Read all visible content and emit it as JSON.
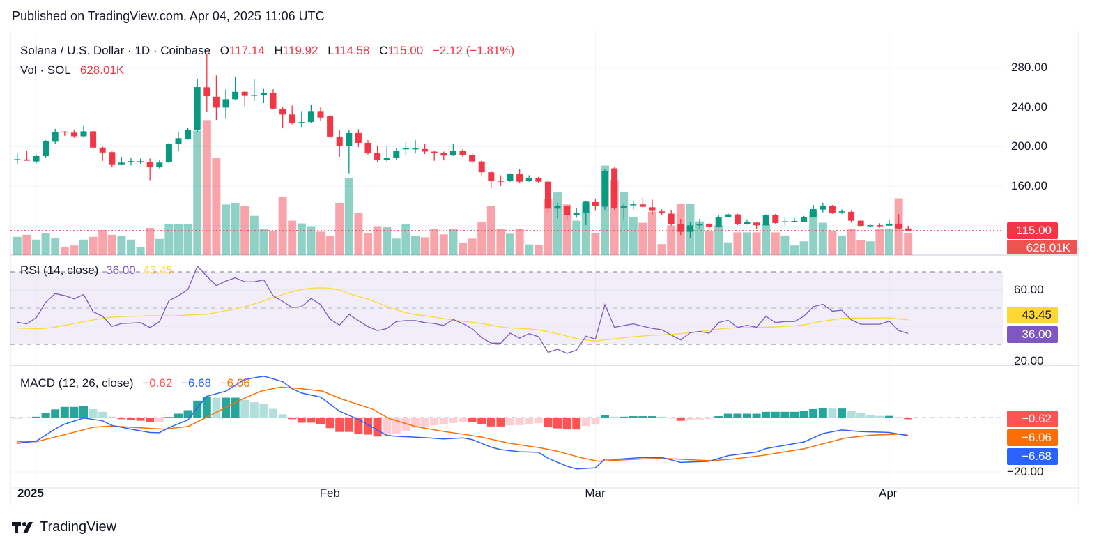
{
  "published": "Published on TradingView.com, Apr 04, 2025 11:06 UTC",
  "legend": {
    "symbol": "Solana / U.S. Dollar · 1D · Coinbase",
    "o_label": "O",
    "o": "117.14",
    "h_label": "H",
    "h": "119.92",
    "l_label": "L",
    "l": "114.58",
    "c_label": "C",
    "c": "115.00",
    "change": "−2.12 (−1.81%)",
    "vol_label": "Vol · SOL",
    "vol": "628.01K"
  },
  "rsi_legend": {
    "label": "RSI (14, close)",
    "rsi": "36.00",
    "ma": "43.45"
  },
  "macd_legend": {
    "label": "MACD (12, 26, close)",
    "hist": "−0.62",
    "macd": "−6.68",
    "signal": "−6.06"
  },
  "price_axis": [
    "280.00",
    "240.00",
    "200.00",
    "160.00"
  ],
  "rsi_axis": [
    "60.00",
    "20.00"
  ],
  "macd_axis": [
    "−20.00"
  ],
  "badges": {
    "price": "115.00",
    "volume": "628.01K",
    "rsi_ma": "43.45",
    "rsi": "36.00",
    "hist": "−0.62",
    "signal": "−6.06",
    "macd": "−6.68"
  },
  "time_axis": [
    {
      "label": "2025",
      "index": 2,
      "bold": true
    },
    {
      "label": "Feb",
      "index": 33
    },
    {
      "label": "Mar",
      "index": 61
    },
    {
      "label": "Apr",
      "index": 92
    }
  ],
  "footer": {
    "brand": "TradingView"
  },
  "colors": {
    "up": "#089981",
    "down": "#f23645",
    "rsi": "#7e57c2",
    "rsi_ma": "#fdd835",
    "macd": "#2962ff",
    "signal": "#ff6d00",
    "hist_up_strong": "#26a69a",
    "hist_up_weak": "#b2dfdb",
    "hist_down_strong": "#ff5252",
    "hist_down_weak": "#ffcdd2"
  },
  "chart_data": {
    "type": "candlestick",
    "title": "Solana / U.S. Dollar · 1D · Coinbase",
    "ylim": [
      105,
      295
    ],
    "ohlc": [
      [
        187.3,
        193,
        182.6,
        187.3
      ],
      [
        187,
        195.5,
        186,
        185.7
      ],
      [
        185,
        192,
        183,
        190.4
      ],
      [
        190.4,
        206.5,
        189,
        205.4
      ],
      [
        205,
        218,
        203,
        215
      ],
      [
        215.3,
        215.5,
        211,
        214.5
      ],
      [
        214.1,
        217,
        209,
        210.5
      ],
      [
        210.5,
        221,
        209,
        215.5
      ],
      [
        215.5,
        216,
        199,
        199
      ],
      [
        199,
        200,
        185.5,
        194
      ],
      [
        194.4,
        195,
        179,
        181.4
      ],
      [
        181.4,
        189.6,
        181,
        183.8
      ],
      [
        185,
        189,
        181,
        185.3
      ],
      [
        185,
        188,
        182,
        185.2
      ],
      [
        184.5,
        188,
        166,
        179
      ],
      [
        179,
        186,
        178,
        183.8
      ],
      [
        184,
        204,
        183,
        203
      ],
      [
        203,
        215,
        196,
        208.5
      ],
      [
        208,
        219,
        207,
        217
      ],
      [
        217,
        268.7,
        215,
        260.2
      ],
      [
        260,
        294,
        235,
        251
      ],
      [
        250.5,
        272,
        227,
        239.5
      ],
      [
        239.5,
        258,
        228,
        248
      ],
      [
        248,
        271,
        247,
        255.5
      ],
      [
        255.5,
        256,
        241,
        251.3
      ],
      [
        252,
        268,
        246,
        252.4
      ],
      [
        252,
        259,
        244,
        254.5
      ],
      [
        254.5,
        258,
        238,
        238.5
      ],
      [
        238,
        240,
        218.5,
        232.5
      ],
      [
        232.5,
        241.5,
        222.5,
        224
      ],
      [
        224,
        236,
        220,
        224.8
      ],
      [
        225,
        242,
        224,
        236
      ],
      [
        236,
        240,
        226,
        229.4
      ],
      [
        231,
        232,
        209,
        210.2
      ],
      [
        210.2,
        216.5,
        189.7,
        200.3
      ],
      [
        200.3,
        216.5,
        173,
        213.7
      ],
      [
        213.7,
        217.7,
        199.5,
        203.8
      ],
      [
        203.8,
        206.5,
        192,
        193.2
      ],
      [
        193.2,
        201,
        184,
        186.2
      ],
      [
        186.2,
        201,
        185,
        188.5
      ],
      [
        188.5,
        198,
        186.5,
        196
      ],
      [
        198,
        204.5,
        191,
        198.3
      ],
      [
        198,
        206.5,
        193,
        198.2
      ],
      [
        197.5,
        203,
        192.5,
        195
      ],
      [
        194.9,
        195.5,
        185.6,
        194
      ],
      [
        193.7,
        195,
        186,
        190.9
      ],
      [
        191,
        202.5,
        190.5,
        196
      ],
      [
        196,
        197.5,
        189.5,
        191.6
      ],
      [
        191.6,
        193.5,
        183.5,
        185
      ],
      [
        185,
        186.5,
        171,
        174
      ],
      [
        174,
        175.5,
        158,
        165.5
      ],
      [
        165.5,
        171,
        160,
        165.3
      ],
      [
        165,
        173,
        164.5,
        172.5
      ],
      [
        172,
        177,
        163.5,
        164.5
      ],
      [
        165,
        171,
        164.5,
        168.5
      ],
      [
        168.3,
        169.5,
        163,
        164.5
      ],
      [
        164.5,
        166.5,
        133.3,
        137.2
      ],
      [
        137.2,
        143,
        127.5,
        140.3
      ],
      [
        139.8,
        141,
        126,
        131.1
      ],
      [
        131,
        138,
        128,
        133.2
      ],
      [
        133,
        144.5,
        120.5,
        144.3
      ],
      [
        143.8,
        147,
        135,
        139.6
      ],
      [
        139.2,
        177,
        136,
        175.6
      ],
      [
        178,
        179,
        136,
        137.5
      ],
      [
        137.5,
        142.5,
        126.4,
        140.3
      ],
      [
        141.3,
        145.2,
        136.4,
        141.6
      ],
      [
        141.5,
        148.5,
        138,
        139.1
      ],
      [
        138.6,
        146.4,
        130.6,
        134.9
      ],
      [
        134.4,
        136.5,
        131,
        132.5
      ],
      [
        132.1,
        135.3,
        120,
        121.2
      ],
      [
        121.2,
        126.9,
        110.5,
        113.7
      ],
      [
        113.7,
        124,
        107.4,
        120.3
      ],
      [
        120.3,
        126.9,
        116.8,
        121.9
      ],
      [
        122,
        122.8,
        116,
        118.9
      ],
      [
        118.9,
        131,
        118,
        129
      ],
      [
        129,
        132.5,
        128.4,
        131.4
      ],
      [
        131.4,
        132,
        120.5,
        121.2
      ],
      [
        121.4,
        126.4,
        121,
        123.4
      ],
      [
        123.1,
        123.5,
        117,
        120.3
      ],
      [
        120.3,
        131.4,
        120,
        130.7
      ],
      [
        130.7,
        131.9,
        122,
        122.7
      ],
      [
        124.2,
        128,
        120.3,
        124.4
      ],
      [
        124.3,
        127.5,
        124,
        124.8
      ],
      [
        123.8,
        129.8,
        123.6,
        128.5
      ],
      [
        128.5,
        141,
        128,
        136.8
      ],
      [
        136.3,
        143.3,
        133.5,
        139.6
      ],
      [
        139.6,
        141,
        132,
        133
      ],
      [
        134.2,
        136.5,
        132,
        134.5
      ],
      [
        134,
        135,
        123,
        125
      ],
      [
        125,
        125.5,
        119,
        119.8
      ],
      [
        120.2,
        122,
        118,
        120.4
      ],
      [
        120.4,
        122.4,
        118,
        120.2
      ],
      [
        120,
        125.6,
        120,
        122
      ],
      [
        122,
        131.7,
        116.5,
        117.2
      ],
      [
        117.14,
        119.92,
        114.58,
        115.0
      ]
    ],
    "volume_millions": [
      0.53,
      0.59,
      0.45,
      0.64,
      0.49,
      0.23,
      0.28,
      0.45,
      0.53,
      0.73,
      0.59,
      0.56,
      0.45,
      0.23,
      0.79,
      0.47,
      0.89,
      0.89,
      0.89,
      3.61,
      3.92,
      2.83,
      1.47,
      1.52,
      1.42,
      1.14,
      0.76,
      0.69,
      1.68,
      1.0,
      0.92,
      0.84,
      0.68,
      0.56,
      1.52,
      2.24,
      1.22,
      0.64,
      0.84,
      0.82,
      0.48,
      0.89,
      0.56,
      0.52,
      0.76,
      0.6,
      0.76,
      0.36,
      0.48,
      0.96,
      1.42,
      0.76,
      0.62,
      0.76,
      0.31,
      0.29,
      1.62,
      1.82,
      1.47,
      1.0,
      1.52,
      0.64,
      2.6,
      2.18,
      1.82,
      1.11,
      0.94,
      1.26,
      0.32,
      0.86,
      1.48,
      1.48,
      0.98,
      0.69,
      0.86,
      0.37,
      0.66,
      0.66,
      0.66,
      0.91,
      0.66,
      0.57,
      0.28,
      0.4,
      1.28,
      0.94,
      0.69,
      0.57,
      0.77,
      0.43,
      0.4,
      0.77,
      0.77,
      1.65,
      0.628
    ],
    "rsi": {
      "levels": [
        70,
        50,
        30
      ],
      "ylim": [
        18,
        80
      ],
      "values": [
        42.2,
        41.3,
        44.7,
        53.2,
        58.0,
        56.9,
        55.1,
        57.5,
        48.0,
        45.5,
        39.9,
        41.5,
        41.7,
        42.0,
        39.3,
        42.5,
        54.1,
        56.8,
        60.2,
        73.1,
        67.6,
        62.4,
        64.9,
        66.7,
        64.5,
        64.5,
        65.6,
        56.8,
        53.7,
        50.3,
        50.8,
        55.3,
        52.0,
        43.9,
        40.6,
        46.5,
        43.1,
        39.8,
        37.6,
        38.7,
        42.6,
        43.1,
        43.1,
        42.0,
        41.5,
        40.4,
        43.7,
        41.5,
        38.6,
        33.7,
        30.7,
        30.6,
        36.2,
        33.4,
        35.9,
        34.2,
        25.6,
        27.3,
        25.0,
        26.8,
        34.5,
        32.9,
        51.9,
        39.4,
        40.4,
        41.3,
        40.0,
        38.8,
        38.1,
        35.1,
        32.4,
        36.4,
        37.1,
        36.1,
        42.1,
        43.3,
        39.3,
        40.5,
        39.4,
        45.5,
        42.0,
        42.6,
        42.6,
        45.5,
        50.8,
        52.1,
        48.3,
        48.8,
        43.5,
        41.1,
        41.1,
        41.1,
        42.8,
        37.6,
        36.0
      ],
      "ma": [
        39.0,
        38.8,
        38.6,
        38.8,
        39.5,
        40.5,
        41.5,
        42.5,
        43.5,
        44.3,
        45.0,
        45.3,
        45.5,
        45.6,
        45.8,
        45.8,
        45.7,
        45.8,
        46.2,
        46.4,
        46.6,
        47.6,
        48.5,
        49.5,
        50.8,
        52.3,
        54.0,
        55.8,
        57.5,
        59.0,
        60.3,
        61.0,
        61.2,
        61.0,
        60.0,
        58.0,
        56.5,
        55.0,
        53.0,
        50.8,
        49.0,
        47.5,
        46.4,
        45.8,
        45.0,
        44.2,
        43.4,
        42.7,
        42.2,
        41.5,
        40.6,
        39.6,
        39.0,
        38.8,
        38.5,
        38.0,
        37.0,
        35.8,
        34.5,
        33.2,
        32.3,
        31.8,
        32.5,
        33.0,
        33.6,
        34.2,
        34.6,
        35.0,
        35.2,
        35.5,
        35.9,
        36.5,
        37.1,
        37.8,
        38.4,
        38.9,
        39.2,
        39.3,
        39.3,
        39.4,
        39.6,
        39.9,
        40.2,
        40.8,
        41.8,
        42.8,
        43.5,
        44.3,
        44.5,
        44.5,
        44.5,
        44.6,
        44.6,
        44.0,
        43.45
      ]
    },
    "macd": {
      "histogram": [
        -0.3,
        -0.1,
        0.3,
        1.6,
        3.0,
        3.9,
        3.9,
        4.2,
        3.1,
        2.1,
        0.3,
        -0.6,
        -1.0,
        -1.2,
        -1.7,
        -1.6,
        0.2,
        1.4,
        2.7,
        6.2,
        7.5,
        7.3,
        7.3,
        7.3,
        6.5,
        5.6,
        5.0,
        3.2,
        1.2,
        -0.6,
        -1.9,
        -1.9,
        -2.4,
        -3.9,
        -5.3,
        -5.3,
        -5.9,
        -6.3,
        -7.0,
        -6.8,
        -5.9,
        -4.9,
        -3.7,
        -3.3,
        -2.9,
        -2.6,
        -2.0,
        -1.7,
        -1.7,
        -2.4,
        -3.3,
        -3.3,
        -2.9,
        -2.8,
        -2.3,
        -2.1,
        -3.6,
        -4.0,
        -4.4,
        -4.4,
        -3.1,
        -2.6,
        0.8,
        0.3,
        0.3,
        0.5,
        0.5,
        0.5,
        0.3,
        -0.3,
        -1.2,
        -1.0,
        -0.7,
        -0.5,
        0.5,
        1.4,
        1.4,
        1.4,
        1.4,
        2.1,
        2.1,
        2.1,
        2.1,
        2.5,
        3.1,
        3.6,
        3.3,
        3.3,
        2.5,
        1.6,
        1.0,
        0.6,
        0.6,
        0.2,
        -0.62
      ],
      "macd_line": [
        [
          0,
          -9.5
        ],
        [
          2,
          -8.7
        ],
        [
          4,
          -4.2
        ],
        [
          5,
          -2.4
        ],
        [
          7,
          -0.2
        ],
        [
          9,
          -1.2
        ],
        [
          10,
          -2.9
        ],
        [
          12,
          -4.3
        ],
        [
          14,
          -5.5
        ],
        [
          15,
          -5.6
        ],
        [
          16,
          -3.7
        ],
        [
          18,
          -0.9
        ],
        [
          19,
          3.6
        ],
        [
          20,
          7.8
        ],
        [
          22,
          9.7
        ],
        [
          24,
          14.0
        ],
        [
          26,
          15.2
        ],
        [
          28,
          13.2
        ],
        [
          29,
          10.6
        ],
        [
          30,
          9.0
        ],
        [
          32,
          7.5
        ],
        [
          34,
          2.3
        ],
        [
          36,
          -0.7
        ],
        [
          38,
          -4.6
        ],
        [
          39,
          -6.6
        ],
        [
          40,
          -6.9
        ],
        [
          43,
          -7.4
        ],
        [
          45,
          -7.9
        ],
        [
          47,
          -7.5
        ],
        [
          48,
          -8.1
        ],
        [
          50,
          -10.9
        ],
        [
          51,
          -11.8
        ],
        [
          53,
          -12.6
        ],
        [
          55,
          -12.8
        ],
        [
          56,
          -15.0
        ],
        [
          58,
          -17.9
        ],
        [
          59,
          -18.9
        ],
        [
          61,
          -18.5
        ],
        [
          62,
          -15.3
        ],
        [
          63,
          -15.4
        ],
        [
          66,
          -14.7
        ],
        [
          68,
          -14.7
        ],
        [
          70,
          -16.5
        ],
        [
          73,
          -16.1
        ],
        [
          75,
          -14.0
        ],
        [
          78,
          -12.7
        ],
        [
          79,
          -11.4
        ],
        [
          83,
          -9.0
        ],
        [
          85,
          -5.9
        ],
        [
          87,
          -4.6
        ],
        [
          89,
          -5.2
        ],
        [
          92,
          -5.5
        ],
        [
          94,
          -6.68
        ]
      ],
      "signal_line": [
        [
          0,
          -8.9
        ],
        [
          2,
          -8.9
        ],
        [
          5,
          -6.3
        ],
        [
          8,
          -3.6
        ],
        [
          10,
          -3.1
        ],
        [
          12,
          -3.6
        ],
        [
          15.5,
          -4.3
        ],
        [
          18,
          -3.3
        ],
        [
          20.5,
          1.0
        ],
        [
          23.5,
          6.4
        ],
        [
          25.7,
          9.7
        ],
        [
          27.8,
          11.2
        ],
        [
          29.7,
          10.7
        ],
        [
          32.2,
          9.7
        ],
        [
          34.3,
          6.7
        ],
        [
          37.4,
          3.2
        ],
        [
          39.2,
          -0.3
        ],
        [
          42,
          -3.3
        ],
        [
          45.1,
          -5.2
        ],
        [
          47.2,
          -6.2
        ],
        [
          49,
          -7.2
        ],
        [
          51.8,
          -9.4
        ],
        [
          55.1,
          -11.1
        ],
        [
          57,
          -12.4
        ],
        [
          59.4,
          -14.7
        ],
        [
          61.3,
          -16.1
        ],
        [
          64.9,
          -15.4
        ],
        [
          68,
          -15.0
        ],
        [
          73.2,
          -15.9
        ],
        [
          75.7,
          -15.2
        ],
        [
          78.7,
          -13.9
        ],
        [
          83,
          -11.5
        ],
        [
          87.3,
          -7.6
        ],
        [
          90,
          -6.5
        ],
        [
          92.6,
          -6.2
        ],
        [
          94,
          -6.06
        ]
      ]
    }
  }
}
